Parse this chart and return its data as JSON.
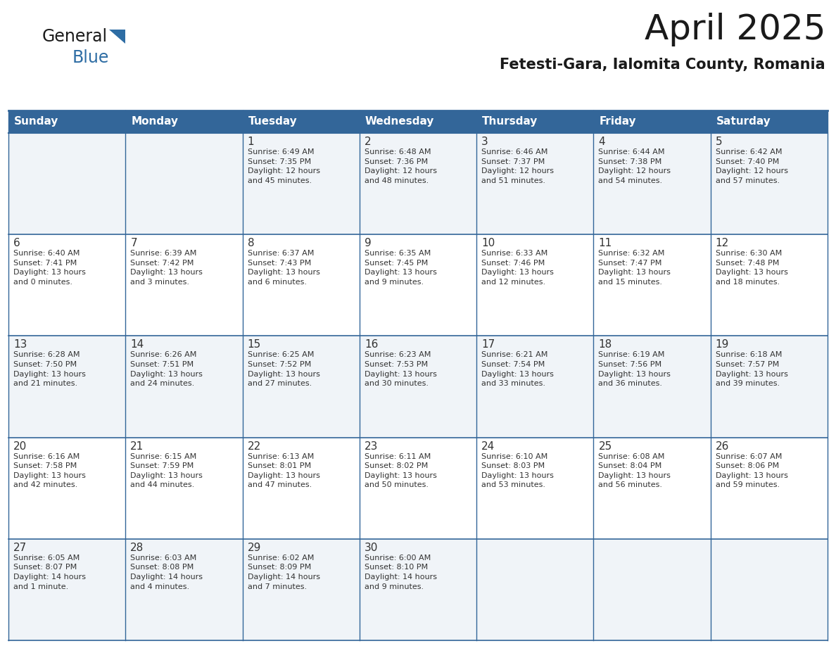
{
  "title": "April 2025",
  "subtitle": "Fetesti-Gara, Ialomita County, Romania",
  "header_bg_color": "#336699",
  "header_text_color": "#FFFFFF",
  "cell_bg_color": "#FFFFFF",
  "odd_row_bg": "#F0F4F8",
  "text_color": "#333333",
  "border_color": "#336699",
  "days_of_week": [
    "Sunday",
    "Monday",
    "Tuesday",
    "Wednesday",
    "Thursday",
    "Friday",
    "Saturday"
  ],
  "weeks": [
    [
      {
        "day": "",
        "info": ""
      },
      {
        "day": "",
        "info": ""
      },
      {
        "day": "1",
        "info": "Sunrise: 6:49 AM\nSunset: 7:35 PM\nDaylight: 12 hours\nand 45 minutes."
      },
      {
        "day": "2",
        "info": "Sunrise: 6:48 AM\nSunset: 7:36 PM\nDaylight: 12 hours\nand 48 minutes."
      },
      {
        "day": "3",
        "info": "Sunrise: 6:46 AM\nSunset: 7:37 PM\nDaylight: 12 hours\nand 51 minutes."
      },
      {
        "day": "4",
        "info": "Sunrise: 6:44 AM\nSunset: 7:38 PM\nDaylight: 12 hours\nand 54 minutes."
      },
      {
        "day": "5",
        "info": "Sunrise: 6:42 AM\nSunset: 7:40 PM\nDaylight: 12 hours\nand 57 minutes."
      }
    ],
    [
      {
        "day": "6",
        "info": "Sunrise: 6:40 AM\nSunset: 7:41 PM\nDaylight: 13 hours\nand 0 minutes."
      },
      {
        "day": "7",
        "info": "Sunrise: 6:39 AM\nSunset: 7:42 PM\nDaylight: 13 hours\nand 3 minutes."
      },
      {
        "day": "8",
        "info": "Sunrise: 6:37 AM\nSunset: 7:43 PM\nDaylight: 13 hours\nand 6 minutes."
      },
      {
        "day": "9",
        "info": "Sunrise: 6:35 AM\nSunset: 7:45 PM\nDaylight: 13 hours\nand 9 minutes."
      },
      {
        "day": "10",
        "info": "Sunrise: 6:33 AM\nSunset: 7:46 PM\nDaylight: 13 hours\nand 12 minutes."
      },
      {
        "day": "11",
        "info": "Sunrise: 6:32 AM\nSunset: 7:47 PM\nDaylight: 13 hours\nand 15 minutes."
      },
      {
        "day": "12",
        "info": "Sunrise: 6:30 AM\nSunset: 7:48 PM\nDaylight: 13 hours\nand 18 minutes."
      }
    ],
    [
      {
        "day": "13",
        "info": "Sunrise: 6:28 AM\nSunset: 7:50 PM\nDaylight: 13 hours\nand 21 minutes."
      },
      {
        "day": "14",
        "info": "Sunrise: 6:26 AM\nSunset: 7:51 PM\nDaylight: 13 hours\nand 24 minutes."
      },
      {
        "day": "15",
        "info": "Sunrise: 6:25 AM\nSunset: 7:52 PM\nDaylight: 13 hours\nand 27 minutes."
      },
      {
        "day": "16",
        "info": "Sunrise: 6:23 AM\nSunset: 7:53 PM\nDaylight: 13 hours\nand 30 minutes."
      },
      {
        "day": "17",
        "info": "Sunrise: 6:21 AM\nSunset: 7:54 PM\nDaylight: 13 hours\nand 33 minutes."
      },
      {
        "day": "18",
        "info": "Sunrise: 6:19 AM\nSunset: 7:56 PM\nDaylight: 13 hours\nand 36 minutes."
      },
      {
        "day": "19",
        "info": "Sunrise: 6:18 AM\nSunset: 7:57 PM\nDaylight: 13 hours\nand 39 minutes."
      }
    ],
    [
      {
        "day": "20",
        "info": "Sunrise: 6:16 AM\nSunset: 7:58 PM\nDaylight: 13 hours\nand 42 minutes."
      },
      {
        "day": "21",
        "info": "Sunrise: 6:15 AM\nSunset: 7:59 PM\nDaylight: 13 hours\nand 44 minutes."
      },
      {
        "day": "22",
        "info": "Sunrise: 6:13 AM\nSunset: 8:01 PM\nDaylight: 13 hours\nand 47 minutes."
      },
      {
        "day": "23",
        "info": "Sunrise: 6:11 AM\nSunset: 8:02 PM\nDaylight: 13 hours\nand 50 minutes."
      },
      {
        "day": "24",
        "info": "Sunrise: 6:10 AM\nSunset: 8:03 PM\nDaylight: 13 hours\nand 53 minutes."
      },
      {
        "day": "25",
        "info": "Sunrise: 6:08 AM\nSunset: 8:04 PM\nDaylight: 13 hours\nand 56 minutes."
      },
      {
        "day": "26",
        "info": "Sunrise: 6:07 AM\nSunset: 8:06 PM\nDaylight: 13 hours\nand 59 minutes."
      }
    ],
    [
      {
        "day": "27",
        "info": "Sunrise: 6:05 AM\nSunset: 8:07 PM\nDaylight: 14 hours\nand 1 minute."
      },
      {
        "day": "28",
        "info": "Sunrise: 6:03 AM\nSunset: 8:08 PM\nDaylight: 14 hours\nand 4 minutes."
      },
      {
        "day": "29",
        "info": "Sunrise: 6:02 AM\nSunset: 8:09 PM\nDaylight: 14 hours\nand 7 minutes."
      },
      {
        "day": "30",
        "info": "Sunrise: 6:00 AM\nSunset: 8:10 PM\nDaylight: 14 hours\nand 9 minutes."
      },
      {
        "day": "",
        "info": ""
      },
      {
        "day": "",
        "info": ""
      },
      {
        "day": "",
        "info": ""
      }
    ]
  ],
  "logo_text_general": "General",
  "logo_text_blue": "Blue",
  "logo_color_general": "#1a1a1a",
  "logo_color_blue": "#2E6DA4",
  "title_fontsize": 36,
  "subtitle_fontsize": 15,
  "header_fontsize": 11,
  "day_num_fontsize": 11,
  "info_fontsize": 8
}
